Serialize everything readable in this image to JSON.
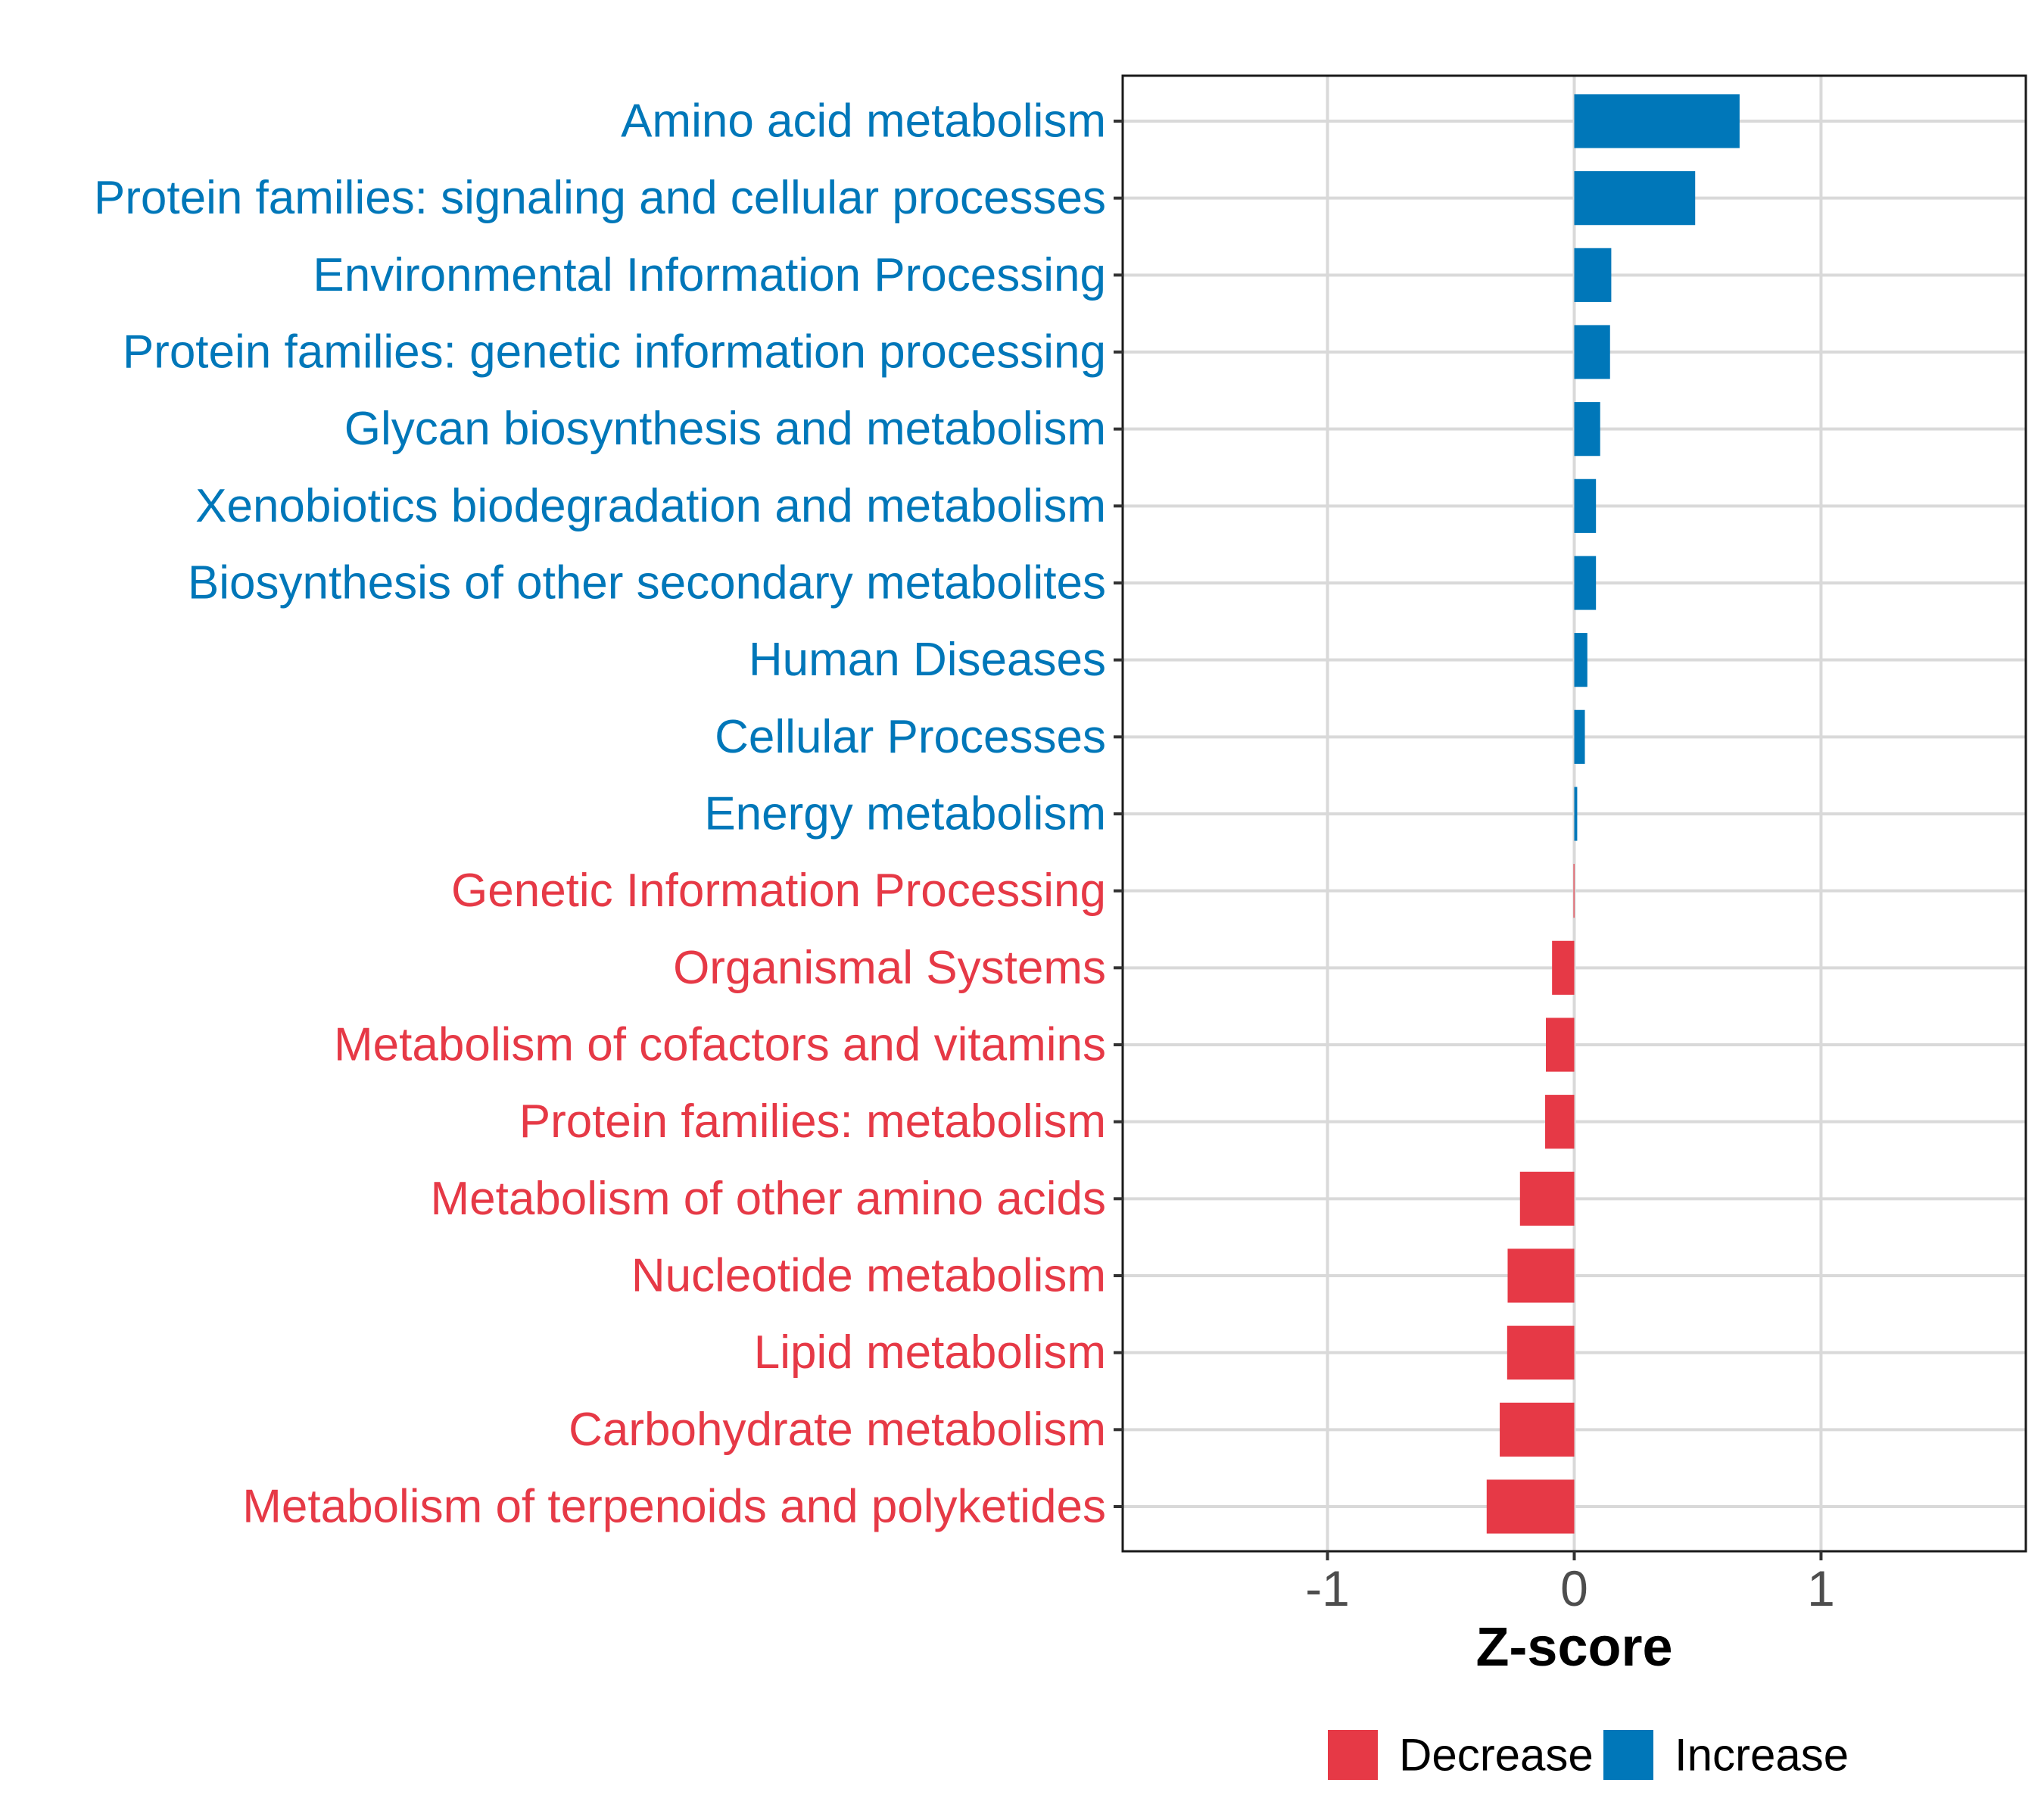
{
  "chart_data": {
    "type": "bar",
    "orientation": "horizontal",
    "title": "",
    "xlabel": "Z-score",
    "ylabel": "",
    "xlim": [
      -1.83,
      1.83
    ],
    "xticks": [
      -1,
      0,
      1
    ],
    "xtick_labels": [
      "-1",
      "0",
      "1"
    ],
    "grid": true,
    "legend_position": "bottom",
    "legend": [
      {
        "label": "Decrease",
        "color": "#E63946"
      },
      {
        "label": "Increase",
        "color": "#0077B9"
      }
    ],
    "categories": [
      "Amino acid metabolism",
      "Protein families: signaling and cellular processes",
      "Environmental Information Processing",
      "Protein families: genetic information processing",
      "Glycan biosynthesis and metabolism",
      "Xenobiotics biodegradation and metabolism",
      "Biosynthesis of other secondary metabolites",
      "Human Diseases",
      "Cellular Processes",
      "Energy metabolism",
      "Genetic Information Processing",
      "Organismal Systems",
      "Metabolism of cofactors and vitamins",
      "Protein families: metabolism",
      "Metabolism of other amino acids",
      "Nucleotide metabolism",
      "Lipid metabolism",
      "Carbohydrate metabolism",
      "Metabolism of terpenoids and polyketides"
    ],
    "values": [
      0.67,
      0.49,
      0.15,
      0.145,
      0.105,
      0.088,
      0.088,
      0.053,
      0.043,
      0.012,
      -0.003,
      -0.09,
      -0.115,
      -0.118,
      -0.22,
      -0.27,
      -0.272,
      -0.302,
      -0.355
    ],
    "groups": [
      "Increase",
      "Increase",
      "Increase",
      "Increase",
      "Increase",
      "Increase",
      "Increase",
      "Increase",
      "Increase",
      "Increase",
      "Decrease",
      "Decrease",
      "Decrease",
      "Decrease",
      "Decrease",
      "Decrease",
      "Decrease",
      "Decrease",
      "Decrease"
    ],
    "colors": {
      "Increase": "#0077B9",
      "Decrease": "#E63946"
    }
  }
}
